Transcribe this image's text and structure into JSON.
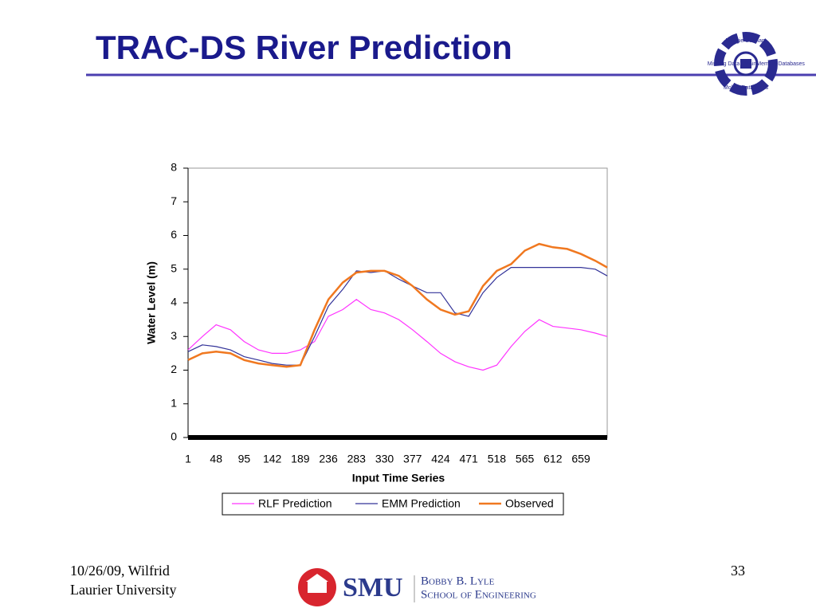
{
  "title": "TRAC-DS River Prediction",
  "logo": {
    "top": "Maggie Dunham",
    "left": "Missing Data",
    "right": "MainMemory Databases",
    "bottom": "Mobile Databases"
  },
  "chart_data": {
    "type": "line",
    "y_label": "Water Level (m)",
    "x_label": "Input Time Series",
    "x": [
      1,
      25,
      48,
      72,
      95,
      119,
      142,
      166,
      189,
      213,
      236,
      260,
      283,
      307,
      330,
      354,
      377,
      401,
      424,
      448,
      471,
      495,
      518,
      542,
      565,
      589,
      612,
      636,
      659,
      683,
      703
    ],
    "xlim": [
      1,
      703
    ],
    "xticks": [
      1,
      48,
      95,
      142,
      189,
      236,
      283,
      330,
      377,
      424,
      471,
      518,
      565,
      612,
      659
    ],
    "ylim": [
      0,
      8
    ],
    "yticks": [
      0,
      1,
      2,
      3,
      4,
      5,
      6,
      7,
      8
    ],
    "series": [
      {
        "name": "RLF Prediction",
        "color": "#ff33ff",
        "values": [
          2.6,
          3.0,
          3.35,
          3.2,
          2.85,
          2.6,
          2.5,
          2.5,
          2.6,
          2.85,
          3.6,
          3.8,
          4.1,
          3.8,
          3.7,
          3.5,
          3.2,
          2.85,
          2.5,
          2.25,
          2.1,
          2.0,
          2.15,
          2.7,
          3.15,
          3.5,
          3.3,
          3.25,
          3.2,
          3.1,
          3.0
        ]
      },
      {
        "name": "EMM Prediction",
        "color": "#333399",
        "values": [
          2.55,
          2.75,
          2.7,
          2.6,
          2.4,
          2.3,
          2.2,
          2.15,
          2.15,
          3.0,
          3.9,
          4.4,
          4.95,
          4.9,
          4.95,
          4.7,
          4.5,
          4.3,
          4.3,
          3.7,
          3.6,
          4.3,
          4.75,
          5.05,
          5.05,
          5.05,
          5.05,
          5.05,
          5.05,
          5.0,
          4.8
        ]
      },
      {
        "name": "Observed",
        "color": "#f07820",
        "values": [
          2.3,
          2.5,
          2.55,
          2.5,
          2.3,
          2.2,
          2.15,
          2.1,
          2.15,
          3.2,
          4.1,
          4.6,
          4.9,
          4.95,
          4.95,
          4.8,
          4.5,
          4.1,
          3.8,
          3.65,
          3.75,
          4.5,
          4.95,
          5.15,
          5.55,
          5.75,
          5.65,
          5.6,
          5.45,
          5.25,
          5.05
        ]
      }
    ]
  },
  "footer": {
    "left": [
      "10/26/09, Wilfrid",
      "Laurier University"
    ],
    "page": "33",
    "smu": "SMU",
    "school_1": "Bobby B. Lyle",
    "school_2": "School of Engineering"
  }
}
